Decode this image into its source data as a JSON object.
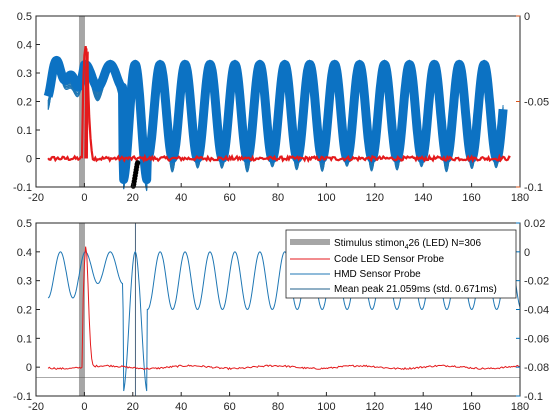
{
  "colors": {
    "led": "#e41a1c",
    "hmd": "#1f77b4",
    "hmd_fill": "#0c72c3",
    "stimulus": "#a6a6a6",
    "axis": "#262626",
    "right_axis_top": "#d95319",
    "right_axis_bottom": "#0072bd",
    "marker": "#000000"
  },
  "chart_data": [
    {
      "type": "line",
      "panel": "top",
      "xlim": [
        -20,
        180
      ],
      "ylim_left": [
        -0.1,
        0.5
      ],
      "ylim_right": [
        -0.1,
        0.0
      ],
      "x_ticks": [
        "-20",
        "0",
        "20",
        "40",
        "60",
        "80",
        "100",
        "120",
        "140",
        "160",
        "180"
      ],
      "y_ticks_left": [
        "-0.1",
        "0",
        "0.1",
        "0.2",
        "0.3",
        "0.4",
        "0.5"
      ],
      "y_ticks_right": [
        "-0.1",
        "-0.05",
        "0"
      ],
      "stimulus": {
        "x": -1
      },
      "led_baseline": 0.0,
      "led_peak": {
        "x": 1,
        "y": 0.39
      },
      "hmd": {
        "start": -15,
        "end": 173,
        "period": 10.3,
        "first_trough": 21,
        "upper": 0.33,
        "trough_band": [
          -0.02,
          0.02
        ],
        "trough_min": -0.1
      },
      "peak_markers_x": [
        20.2,
        20.4,
        20.6,
        20.8,
        21.0,
        21.2,
        21.4,
        21.6,
        21.8,
        22.0
      ],
      "peak_markers_y": [
        -0.097,
        -0.09,
        -0.08,
        -0.07,
        -0.06,
        -0.05,
        -0.04,
        -0.03,
        -0.02,
        -0.015
      ]
    },
    {
      "type": "line",
      "panel": "bottom",
      "xlim": [
        -20,
        180
      ],
      "ylim_left": [
        -0.1,
        0.5
      ],
      "ylim_right": [
        -0.1,
        0.02
      ],
      "x_ticks": [
        "-20",
        "0",
        "20",
        "40",
        "60",
        "80",
        "100",
        "120",
        "140",
        "160",
        "180"
      ],
      "y_ticks_left": [
        "-0.1",
        "0",
        "0.1",
        "0.2",
        "0.3",
        "0.4",
        "0.5"
      ],
      "y_ticks_right": [
        "-0.1",
        "-0.08",
        "-0.06",
        "-0.04",
        "-0.02",
        "0",
        "0.02"
      ],
      "stimulus": {
        "x": -1
      },
      "mean_peak_x": 21.059,
      "led_peak": {
        "x": 1,
        "y": 0.42
      },
      "hmd": {
        "start": -15,
        "end": 180,
        "period": 10.3,
        "first_trough": 21,
        "max": 0.0,
        "min": -0.04,
        "first_min": -0.098
      },
      "legend": {
        "stimulus_label": "Stimulus stimon",
        "stimulus_sub": "4",
        "stimulus_label_rest": "26 (LED)  N=306",
        "led_label": "Code LED Sensor Probe",
        "hmd_label": "HMD Sensor Probe",
        "mean_label": "Mean peak 21.059ms (std. 0.671ms)"
      }
    }
  ]
}
